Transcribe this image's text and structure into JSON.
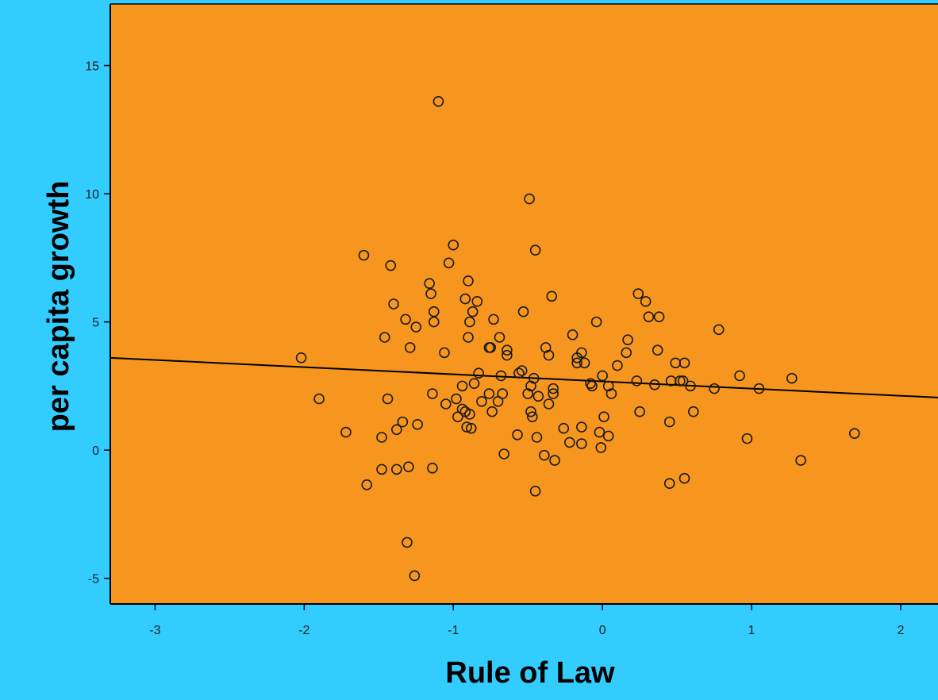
{
  "colors": {
    "outer_background": "#33ccff",
    "plot_background": "#f7961e",
    "marker_stroke": "#1a1a1a",
    "axis": "#000000"
  },
  "chart_data": {
    "type": "scatter",
    "title": "",
    "xlabel": "Rule of Law",
    "ylabel": "per capita growth",
    "xlim": [
      -3.3,
      2.25
    ],
    "ylim": [
      -6,
      17.4
    ],
    "xticks": [
      -3,
      -2,
      -1,
      0,
      1,
      2
    ],
    "yticks": [
      -5,
      0,
      5,
      10,
      15
    ],
    "grid": false,
    "legend": "none",
    "marker": "open-circle",
    "fit_line": {
      "x": [
        -3.3,
        2.25
      ],
      "y": [
        3.6,
        2.05
      ]
    },
    "points": [
      [
        -2.02,
        3.6
      ],
      [
        -1.9,
        2.0
      ],
      [
        -1.72,
        0.7
      ],
      [
        -1.6,
        7.6
      ],
      [
        -1.58,
        -1.35
      ],
      [
        -1.48,
        0.5
      ],
      [
        -1.48,
        -0.75
      ],
      [
        -1.46,
        4.4
      ],
      [
        -1.44,
        2.0
      ],
      [
        -1.42,
        7.2
      ],
      [
        -1.4,
        5.7
      ],
      [
        -1.38,
        -0.75
      ],
      [
        -1.38,
        0.8
      ],
      [
        -1.34,
        1.1
      ],
      [
        -1.32,
        5.1
      ],
      [
        -1.31,
        -3.6
      ],
      [
        -1.3,
        -0.65
      ],
      [
        -1.29,
        4.0
      ],
      [
        -1.26,
        -4.9
      ],
      [
        -1.25,
        4.8
      ],
      [
        -1.24,
        1.0
      ],
      [
        -1.16,
        6.5
      ],
      [
        -1.15,
        6.1
      ],
      [
        -1.14,
        2.2
      ],
      [
        -1.14,
        -0.7
      ],
      [
        -1.13,
        5.4
      ],
      [
        -1.13,
        5.0
      ],
      [
        -1.1,
        13.6
      ],
      [
        -1.06,
        3.8
      ],
      [
        -1.05,
        1.8
      ],
      [
        -1.03,
        7.3
      ],
      [
        -1.0,
        8.0
      ],
      [
        -0.98,
        2.0
      ],
      [
        -0.97,
        1.3
      ],
      [
        -0.94,
        1.6
      ],
      [
        -0.94,
        2.5
      ],
      [
        -0.92,
        5.9
      ],
      [
        -0.92,
        1.5
      ],
      [
        -0.91,
        0.9
      ],
      [
        -0.9,
        6.6
      ],
      [
        -0.9,
        4.4
      ],
      [
        -0.89,
        5.0
      ],
      [
        -0.89,
        1.4
      ],
      [
        -0.88,
        0.85
      ],
      [
        -0.87,
        5.4
      ],
      [
        -0.86,
        2.6
      ],
      [
        -0.84,
        5.8
      ],
      [
        -0.83,
        3.0
      ],
      [
        -0.81,
        1.9
      ],
      [
        -0.76,
        2.2
      ],
      [
        -0.76,
        4.0
      ],
      [
        -0.75,
        4.0
      ],
      [
        -0.74,
        1.5
      ],
      [
        -0.73,
        5.1
      ],
      [
        -0.7,
        1.9
      ],
      [
        -0.69,
        4.4
      ],
      [
        -0.68,
        2.9
      ],
      [
        -0.67,
        2.2
      ],
      [
        -0.66,
        -0.15
      ],
      [
        -0.64,
        3.9
      ],
      [
        -0.64,
        3.7
      ],
      [
        -0.57,
        0.6
      ],
      [
        -0.56,
        3.0
      ],
      [
        -0.54,
        3.1
      ],
      [
        -0.53,
        5.4
      ],
      [
        -0.5,
        2.2
      ],
      [
        -0.49,
        9.8
      ],
      [
        -0.48,
        1.5
      ],
      [
        -0.48,
        2.5
      ],
      [
        -0.47,
        1.3
      ],
      [
        -0.46,
        2.8
      ],
      [
        -0.45,
        7.8
      ],
      [
        -0.45,
        -1.6
      ],
      [
        -0.44,
        0.5
      ],
      [
        -0.43,
        2.1
      ],
      [
        -0.39,
        -0.2
      ],
      [
        -0.38,
        4.0
      ],
      [
        -0.36,
        1.8
      ],
      [
        -0.36,
        3.7
      ],
      [
        -0.34,
        6.0
      ],
      [
        -0.33,
        2.2
      ],
      [
        -0.33,
        2.4
      ],
      [
        -0.32,
        -0.4
      ],
      [
        -0.26,
        0.85
      ],
      [
        -0.22,
        0.3
      ],
      [
        -0.2,
        4.5
      ],
      [
        -0.17,
        3.6
      ],
      [
        -0.17,
        3.4
      ],
      [
        -0.14,
        3.8
      ],
      [
        -0.14,
        0.9
      ],
      [
        -0.14,
        0.25
      ],
      [
        -0.12,
        3.4
      ],
      [
        -0.08,
        2.6
      ],
      [
        -0.07,
        2.5
      ],
      [
        -0.04,
        5.0
      ],
      [
        -0.02,
        0.7
      ],
      [
        -0.01,
        0.1
      ],
      [
        0.0,
        2.9
      ],
      [
        0.01,
        1.3
      ],
      [
        0.04,
        2.5
      ],
      [
        0.04,
        0.55
      ],
      [
        0.06,
        2.2
      ],
      [
        0.1,
        3.3
      ],
      [
        0.16,
        3.8
      ],
      [
        0.17,
        4.3
      ],
      [
        0.23,
        2.7
      ],
      [
        0.24,
        6.1
      ],
      [
        0.25,
        1.5
      ],
      [
        0.29,
        5.8
      ],
      [
        0.31,
        5.2
      ],
      [
        0.35,
        2.55
      ],
      [
        0.37,
        3.9
      ],
      [
        0.38,
        5.2
      ],
      [
        0.45,
        -1.3
      ],
      [
        0.45,
        1.1
      ],
      [
        0.46,
        2.7
      ],
      [
        0.49,
        3.4
      ],
      [
        0.52,
        2.7
      ],
      [
        0.54,
        2.7
      ],
      [
        0.55,
        3.4
      ],
      [
        0.55,
        -1.1
      ],
      [
        0.59,
        2.5
      ],
      [
        0.61,
        1.5
      ],
      [
        0.75,
        2.4
      ],
      [
        0.78,
        4.7
      ],
      [
        0.92,
        2.9
      ],
      [
        0.97,
        0.45
      ],
      [
        1.05,
        2.4
      ],
      [
        1.27,
        2.8
      ],
      [
        1.33,
        -0.4
      ],
      [
        1.69,
        0.65
      ]
    ]
  }
}
